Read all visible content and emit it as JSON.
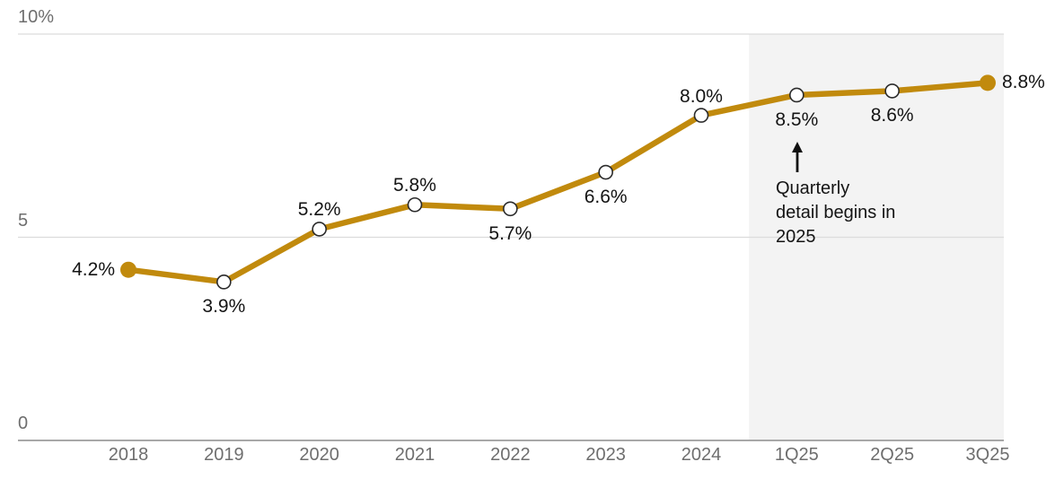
{
  "chart": {
    "colors": {
      "line": "#C18A0D",
      "marker_open_fill": "#FFFFFF",
      "marker_stroke": "#2B2B2B",
      "grid": "#DCDCDC",
      "axis": "#8C8C8C",
      "tick_text": "#6E6E6E",
      "label_text": "#141414",
      "forecast_band": "#F3F3F3",
      "background": "#FFFFFF"
    },
    "annotation": {
      "lines": [
        "Quarterly",
        "detail begins in",
        "2025"
      ],
      "icon": "up-arrow"
    }
  },
  "chart_data": {
    "type": "line",
    "title": "",
    "xlabel": "",
    "ylabel": "",
    "categories": [
      "2018",
      "2019",
      "2020",
      "2021",
      "2022",
      "2023",
      "2024",
      "1Q25",
      "2Q25",
      "3Q25"
    ],
    "values": [
      4.2,
      3.9,
      5.2,
      5.8,
      5.7,
      6.6,
      8.0,
      8.5,
      8.6,
      8.8
    ],
    "point_labels": [
      "4.2%",
      "3.9%",
      "5.2%",
      "5.8%",
      "5.7%",
      "6.6%",
      "8.0%",
      "8.5%",
      "8.6%",
      "8.8%"
    ],
    "label_placement": [
      "left",
      "below",
      "above",
      "above",
      "below",
      "below",
      "above",
      "below",
      "below",
      "right"
    ],
    "marker_style": [
      "filled",
      "open",
      "open",
      "open",
      "open",
      "open",
      "open",
      "open",
      "open",
      "filled"
    ],
    "y_ticks": [
      {
        "value": 0,
        "label": "0"
      },
      {
        "value": 5,
        "label": "5"
      },
      {
        "value": 10,
        "label": "10%"
      }
    ],
    "ylim": [
      0,
      10
    ],
    "grid": true,
    "legend": "none",
    "shaded_region": {
      "from_between": [
        "2024",
        "1Q25"
      ],
      "to": "right-edge",
      "note": "Quarterly detail begins in 2025"
    }
  }
}
